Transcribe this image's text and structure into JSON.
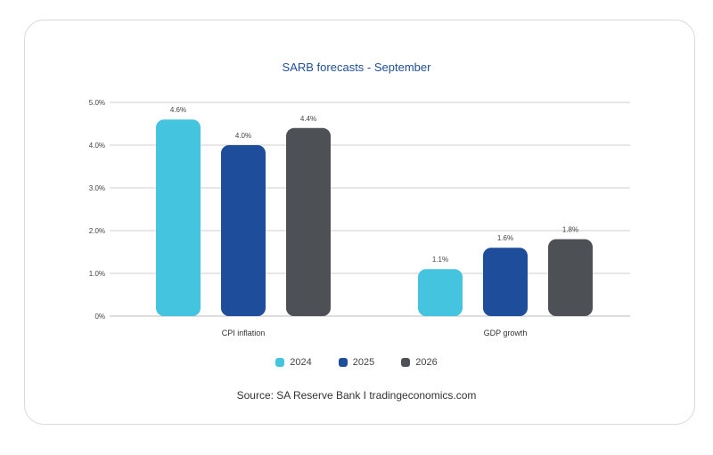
{
  "chart_data": {
    "type": "bar",
    "title": "SARB forecasts - September",
    "categories": [
      "CPI inflation",
      "GDP growth"
    ],
    "series": [
      {
        "name": "2024",
        "color": "#45c4df",
        "values": [
          4.6,
          1.1
        ],
        "labels": [
          "4.6%",
          "1.1%"
        ]
      },
      {
        "name": "2025",
        "color": "#1e4d9b",
        "values": [
          4.0,
          1.6
        ],
        "labels": [
          "4.0%",
          "1.6%"
        ]
      },
      {
        "name": "2026",
        "color": "#4d5054",
        "values": [
          4.4,
          1.8
        ],
        "labels": [
          "4.4%",
          "1.8%"
        ]
      }
    ],
    "yticks": [
      "0%",
      "1.0%",
      "2.0%",
      "3.0%",
      "4.0%",
      "5.0%"
    ],
    "ylim": [
      0,
      5
    ],
    "grid": true,
    "legend_position": "bottom"
  },
  "source": {
    "prefix": "Source:",
    "text": " SA Reserve Bank I tradingeconomics.com"
  }
}
